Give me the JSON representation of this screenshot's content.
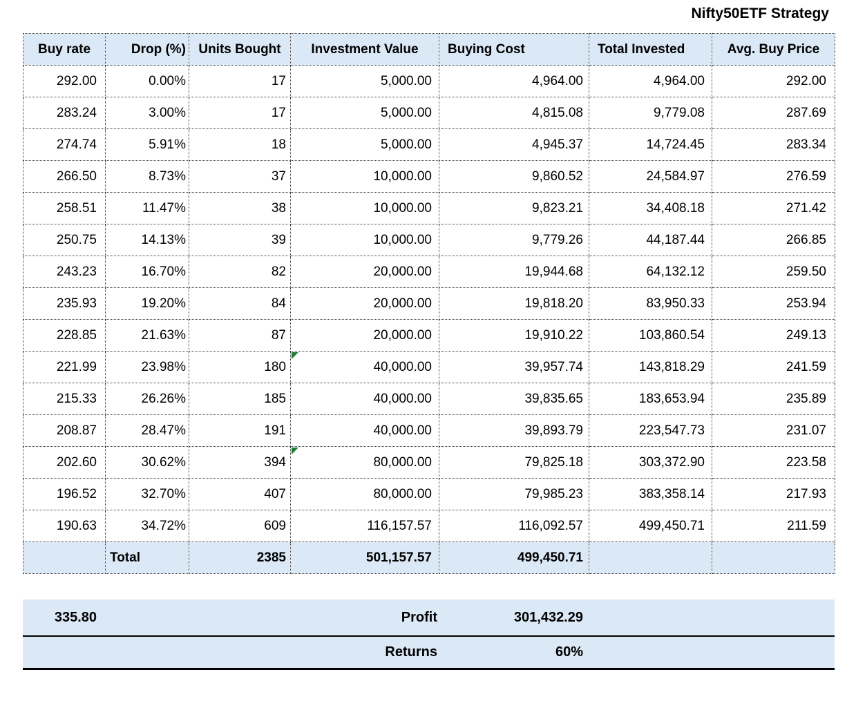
{
  "title": "Nifty50ETF Strategy",
  "colors": {
    "band_bg": "#dbe8f6",
    "marker_green": "#1e7b34",
    "grid_border": "#3a3a3a"
  },
  "table": {
    "columns": [
      "Buy rate",
      "Drop (%)",
      "Units Bought",
      "Investment Value",
      "Buying Cost",
      "Total Invested",
      "Avg. Buy Price"
    ],
    "rows": [
      [
        "292.00",
        "0.00%",
        "17",
        "5,000.00",
        "4,964.00",
        "4,964.00",
        "292.00"
      ],
      [
        "283.24",
        "3.00%",
        "17",
        "5,000.00",
        "4,815.08",
        "9,779.08",
        "287.69"
      ],
      [
        "274.74",
        "5.91%",
        "18",
        "5,000.00",
        "4,945.37",
        "14,724.45",
        "283.34"
      ],
      [
        "266.50",
        "8.73%",
        "37",
        "10,000.00",
        "9,860.52",
        "24,584.97",
        "276.59"
      ],
      [
        "258.51",
        "11.47%",
        "38",
        "10,000.00",
        "9,823.21",
        "34,408.18",
        "271.42"
      ],
      [
        "250.75",
        "14.13%",
        "39",
        "10,000.00",
        "9,779.26",
        "44,187.44",
        "266.85"
      ],
      [
        "243.23",
        "16.70%",
        "82",
        "20,000.00",
        "19,944.68",
        "64,132.12",
        "259.50"
      ],
      [
        "235.93",
        "19.20%",
        "84",
        "20,000.00",
        "19,818.20",
        "83,950.33",
        "253.94"
      ],
      [
        "228.85",
        "21.63%",
        "87",
        "20,000.00",
        "19,910.22",
        "103,860.54",
        "249.13"
      ],
      [
        "221.99",
        "23.98%",
        "180",
        "40,000.00",
        "39,957.74",
        "143,818.29",
        "241.59"
      ],
      [
        "215.33",
        "26.26%",
        "185",
        "40,000.00",
        "39,835.65",
        "183,653.94",
        "235.89"
      ],
      [
        "208.87",
        "28.47%",
        "191",
        "40,000.00",
        "39,893.79",
        "223,547.73",
        "231.07"
      ],
      [
        "202.60",
        "30.62%",
        "394",
        "80,000.00",
        "79,825.18",
        "303,372.90",
        "223.58"
      ],
      [
        "196.52",
        "32.70%",
        "407",
        "80,000.00",
        "79,985.23",
        "383,358.14",
        "217.93"
      ],
      [
        "190.63",
        "34.72%",
        "609",
        "116,157.57",
        "116,092.57",
        "499,450.71",
        "211.59"
      ]
    ],
    "error_marker_rows": [
      9,
      12
    ],
    "total_row": {
      "label": "Total",
      "units": "2385",
      "investment_value": "501,157.57",
      "buying_cost": "499,450.71"
    }
  },
  "summary": {
    "buy_rate": "335.80",
    "profit_label": "Profit",
    "profit_value": "301,432.29",
    "returns_label": "Returns",
    "returns_value": "60%"
  }
}
